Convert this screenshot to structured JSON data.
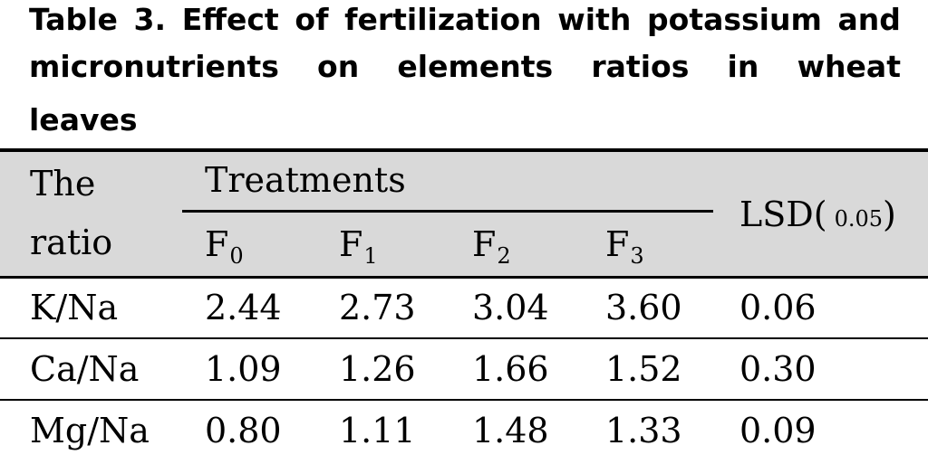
{
  "caption": {
    "line1": [
      "Table",
      "3.",
      "Effect",
      "of",
      "fertilization",
      "with",
      "potassium",
      "and"
    ],
    "line2": [
      "micronutrients",
      "on",
      "elements",
      "ratios",
      "in",
      "wheat"
    ],
    "line3": [
      "leaves"
    ]
  },
  "header": {
    "ratio_line1": "The",
    "ratio_line2": "ratio",
    "treatments": "Treatments",
    "cols": [
      {
        "base": "F",
        "sub": "0"
      },
      {
        "base": "F",
        "sub": "1"
      },
      {
        "base": "F",
        "sub": "2"
      },
      {
        "base": "F",
        "sub": "3"
      }
    ],
    "lsd_base": "LSD(",
    "lsd_sub": "0.05",
    "lsd_close": ")"
  },
  "rows": [
    {
      "label": "K/Na",
      "values": [
        "2.44",
        "2.73",
        "3.04",
        "3.60"
      ],
      "lsd": "0.06"
    },
    {
      "label": "Ca/Na",
      "values": [
        "1.09",
        "1.26",
        "1.66",
        "1.52"
      ],
      "lsd": "0.30"
    },
    {
      "label": "Mg/Na",
      "values": [
        "0.80",
        "1.11",
        "1.48",
        "1.33"
      ],
      "lsd": "0.09"
    }
  ]
}
